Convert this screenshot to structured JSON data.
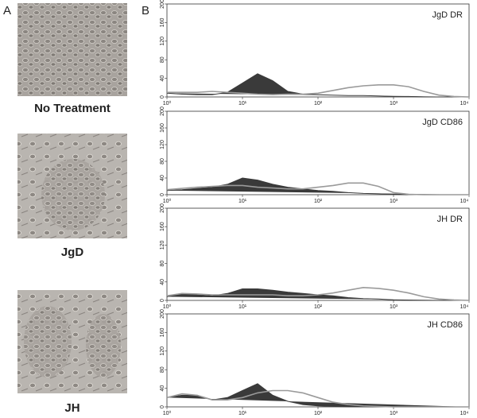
{
  "panel_labels": [
    "A",
    "B"
  ],
  "image_captions": [
    "No Treatment",
    "JgD",
    "JH"
  ],
  "chart_data": [
    {
      "type": "line",
      "title": "JgD DR",
      "xscale": "log",
      "x": [
        1,
        1.585,
        2.512,
        3.981,
        6.31,
        10,
        15.85,
        25.12,
        39.81,
        63.1,
        100,
        158.5,
        251.2,
        398.1,
        631,
        1000,
        1585,
        2512,
        3981,
        6310,
        10000
      ],
      "xlim": [
        1,
        10000
      ],
      "xticks": [
        {
          "value": 1,
          "label": "10⁰"
        },
        {
          "value": 10,
          "label": "10¹"
        },
        {
          "value": 100,
          "label": "10²"
        },
        {
          "value": 1000,
          "label": "10³"
        },
        {
          "value": 10000,
          "label": "10⁴"
        }
      ],
      "ylim": [
        0,
        200
      ],
      "yticks": [
        0,
        40,
        80,
        120,
        160,
        200
      ],
      "series": [
        {
          "color": "#3a3a3a",
          "filled": true,
          "values": [
            8,
            6,
            5,
            5,
            10,
            30,
            50,
            35,
            12,
            6,
            5,
            4,
            3,
            3,
            2,
            1,
            1,
            0,
            0,
            0,
            0
          ]
        },
        {
          "color": "#9a9a9a",
          "filled": false,
          "values": [
            10,
            10,
            10,
            12,
            10,
            8,
            6,
            5,
            6,
            6,
            8,
            14,
            20,
            24,
            26,
            26,
            22,
            12,
            4,
            1,
            0
          ]
        }
      ]
    },
    {
      "type": "line",
      "title": "JgD CD86",
      "xscale": "log",
      "x": [
        1,
        1.585,
        2.512,
        3.981,
        6.31,
        10,
        15.85,
        25.12,
        39.81,
        63.1,
        100,
        158.5,
        251.2,
        398.1,
        631,
        1000,
        1585,
        2512,
        3981,
        6310,
        10000
      ],
      "xlim": [
        1,
        10000
      ],
      "xticks": [
        {
          "value": 1,
          "label": "10⁰"
        },
        {
          "value": 10,
          "label": "10¹"
        },
        {
          "value": 100,
          "label": "10²"
        },
        {
          "value": 1000,
          "label": "10³"
        },
        {
          "value": 10000,
          "label": "10⁴"
        }
      ],
      "ylim": [
        0,
        200
      ],
      "yticks": [
        0,
        40,
        80,
        120,
        160,
        200
      ],
      "series": [
        {
          "color": "#3a3a3a",
          "filled": true,
          "values": [
            10,
            12,
            15,
            18,
            25,
            40,
            35,
            25,
            18,
            14,
            10,
            8,
            5,
            3,
            2,
            1,
            0,
            0,
            0,
            0,
            0
          ]
        },
        {
          "color": "#9a9a9a",
          "filled": false,
          "values": [
            12,
            15,
            18,
            20,
            22,
            22,
            18,
            16,
            14,
            14,
            18,
            22,
            28,
            28,
            20,
            5,
            1,
            0,
            0,
            0,
            0
          ]
        }
      ]
    },
    {
      "type": "line",
      "title": "JH DR",
      "xscale": "log",
      "x": [
        1,
        1.585,
        2.512,
        3.981,
        6.31,
        10,
        15.85,
        25.12,
        39.81,
        63.1,
        100,
        158.5,
        251.2,
        398.1,
        631,
        1000,
        1585,
        2512,
        3981,
        6310,
        10000
      ],
      "xlim": [
        1,
        10000
      ],
      "xticks": [
        {
          "value": 1,
          "label": "10⁰"
        },
        {
          "value": 10,
          "label": "10¹"
        },
        {
          "value": 100,
          "label": "10²"
        },
        {
          "value": 1000,
          "label": "10³"
        },
        {
          "value": 10000,
          "label": "10⁴"
        }
      ],
      "ylim": [
        0,
        200
      ],
      "yticks": [
        0,
        40,
        80,
        120,
        160,
        200
      ],
      "series": [
        {
          "color": "#3a3a3a",
          "filled": true,
          "values": [
            8,
            15,
            12,
            10,
            15,
            25,
            25,
            22,
            18,
            15,
            12,
            10,
            6,
            4,
            3,
            1,
            0,
            0,
            0,
            0,
            0
          ]
        },
        {
          "color": "#9a9a9a",
          "filled": false,
          "values": [
            10,
            15,
            14,
            12,
            12,
            12,
            12,
            12,
            10,
            10,
            12,
            16,
            22,
            28,
            26,
            22,
            16,
            8,
            3,
            1,
            0
          ]
        }
      ]
    },
    {
      "type": "line",
      "title": "JH CD86",
      "xscale": "log",
      "x": [
        1,
        1.585,
        2.512,
        3.981,
        6.31,
        10,
        15.85,
        25.12,
        39.81,
        63.1,
        100,
        158.5,
        251.2,
        398.1,
        631,
        1000,
        1585,
        2512,
        3981,
        6310,
        10000
      ],
      "xlim": [
        1,
        10000
      ],
      "xticks": [
        {
          "value": 1,
          "label": "10⁰"
        },
        {
          "value": 10,
          "label": "10¹"
        },
        {
          "value": 100,
          "label": "10²"
        },
        {
          "value": 1000,
          "label": "10³"
        },
        {
          "value": 10000,
          "label": "10⁴"
        }
      ],
      "ylim": [
        0,
        200
      ],
      "yticks": [
        0,
        40,
        80,
        120,
        160,
        200
      ],
      "series": [
        {
          "color": "#3a3a3a",
          "filled": true,
          "values": [
            20,
            25,
            25,
            15,
            20,
            35,
            50,
            25,
            12,
            5,
            2,
            1,
            0,
            0,
            0,
            0,
            0,
            0,
            0,
            0,
            0
          ]
        },
        {
          "color": "#9a9a9a",
          "filled": false,
          "values": [
            20,
            28,
            25,
            15,
            15,
            20,
            30,
            35,
            35,
            30,
            20,
            10,
            5,
            2,
            1,
            0,
            0,
            0,
            0,
            0,
            0
          ]
        }
      ]
    }
  ]
}
